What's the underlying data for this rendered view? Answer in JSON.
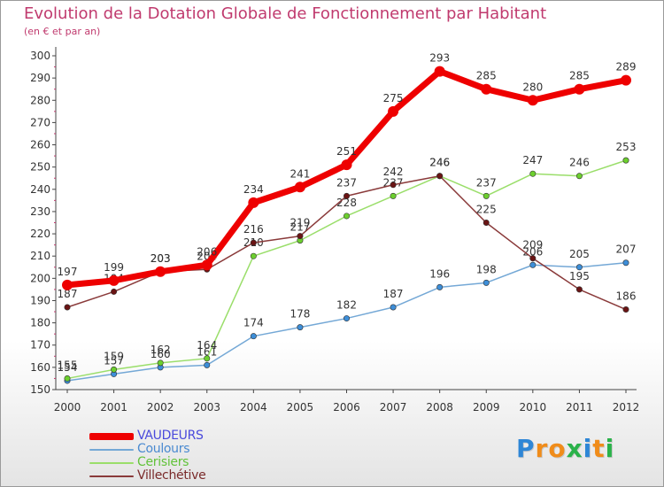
{
  "title": "Evolution de la Dotation Globale de Fonctionnement par Habitant",
  "subtitle": "(en € et par an)",
  "brand": {
    "letters": [
      "P",
      "r",
      "o",
      "x",
      "i",
      "t",
      "i"
    ],
    "colors": [
      "#2e86d6",
      "#f08c1a",
      "#f08c1a",
      "#2ab24a",
      "#2e86d6",
      "#f08c1a",
      "#2ab24a"
    ]
  },
  "chart_data": {
    "type": "line",
    "title": "Evolution de la Dotation Globale de Fonctionnement par Habitant",
    "subtitle": "(en € et par an)",
    "xlabel": "",
    "ylabel": "",
    "x": [
      "2000",
      "2001",
      "2002",
      "2003",
      "2004",
      "2005",
      "2006",
      "2007",
      "2008",
      "2009",
      "2010",
      "2011",
      "2012"
    ],
    "ylim": [
      150,
      300
    ],
    "yticks": [
      150,
      160,
      170,
      180,
      190,
      200,
      210,
      220,
      230,
      240,
      250,
      260,
      270,
      280,
      290,
      300
    ],
    "grid": false,
    "legend_position": "bottom-left",
    "series": [
      {
        "name": "VAUDEURS",
        "color": "#ee0000",
        "marker": "#ee0000",
        "legend_text_color": "#4a4adc",
        "width": 7,
        "values": [
          197,
          199,
          203,
          206,
          234,
          241,
          251,
          275,
          293,
          285,
          280,
          285,
          289
        ]
      },
      {
        "name": "Coulours",
        "color": "#74a8d6",
        "marker": "#3d8ed8",
        "legend_text_color": "#4a8ad0",
        "width": 1.5,
        "values": [
          154,
          157,
          160,
          161,
          174,
          178,
          182,
          187,
          196,
          198,
          206,
          205,
          207
        ]
      },
      {
        "name": "Cerisiers",
        "color": "#9ade6a",
        "marker": "#6ccf2e",
        "legend_text_color": "#62c23a",
        "width": 1.5,
        "values": [
          155,
          159,
          162,
          164,
          210,
          217,
          228,
          237,
          246,
          237,
          247,
          246,
          253
        ]
      },
      {
        "name": "Villechétive",
        "color": "#8a3a3a",
        "marker": "#6a1414",
        "legend_text_color": "#7a2a2a",
        "width": 1.5,
        "values": [
          187,
          194,
          203,
          204,
          216,
          219,
          237,
          242,
          246,
          225,
          209,
          195,
          186
        ]
      }
    ]
  }
}
